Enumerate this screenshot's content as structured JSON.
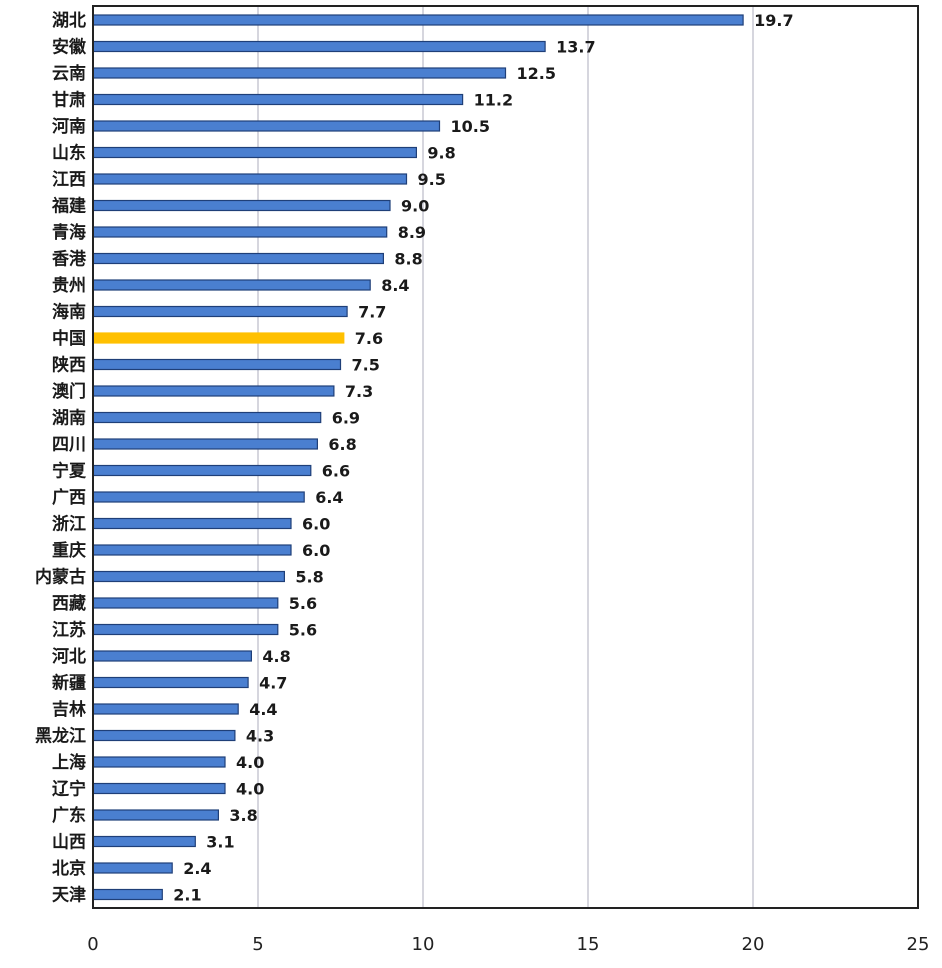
{
  "chart_data": {
    "type": "bar",
    "orientation": "horizontal",
    "title": "",
    "xlabel": "",
    "ylabel": "",
    "xlim": [
      0,
      25
    ],
    "x_ticks": [
      0,
      5,
      10,
      15,
      20,
      25
    ],
    "grid": "vertical",
    "legend": "none",
    "categories": [
      "湖北",
      "安徽",
      "云南",
      "甘肃",
      "河南",
      "山东",
      "江西",
      "福建",
      "青海",
      "香港",
      "贵州",
      "海南",
      "中国",
      "陕西",
      "澳门",
      "湖南",
      "四川",
      "宁夏",
      "广西",
      "浙江",
      "重庆",
      "内蒙古",
      "西藏",
      "江苏",
      "河北",
      "新疆",
      "吉林",
      "黑龙江",
      "上海",
      "辽宁",
      "广东",
      "山西",
      "北京",
      "天津"
    ],
    "values": [
      19.7,
      13.7,
      12.5,
      11.2,
      10.5,
      9.8,
      9.5,
      9.0,
      8.9,
      8.8,
      8.4,
      7.7,
      7.6,
      7.5,
      7.3,
      6.9,
      6.8,
      6.6,
      6.4,
      6.0,
      6.0,
      5.8,
      5.6,
      5.6,
      4.8,
      4.7,
      4.4,
      4.3,
      4.0,
      4.0,
      3.8,
      3.1,
      2.4,
      2.1
    ],
    "value_labels": [
      "19.7",
      "13.7",
      "12.5",
      "11.2",
      "10.5",
      "9.8",
      "9.5",
      "9.0",
      "8.9",
      "8.8",
      "8.4",
      "7.7",
      "7.6",
      "7.5",
      "7.3",
      "6.9",
      "6.8",
      "6.6",
      "6.4",
      "6.0",
      "6.0",
      "5.8",
      "5.6",
      "5.6",
      "4.8",
      "4.7",
      "4.4",
      "4.3",
      "4.0",
      "4.0",
      "3.8",
      "3.1",
      "2.4",
      "2.1"
    ],
    "highlight_category": "中国",
    "colors": {
      "bar": "#4a7fd0",
      "bar_edge": "#1f3f78",
      "highlight": "#ffc000",
      "grid": "#c8c8d4",
      "frame": "#222222"
    }
  }
}
